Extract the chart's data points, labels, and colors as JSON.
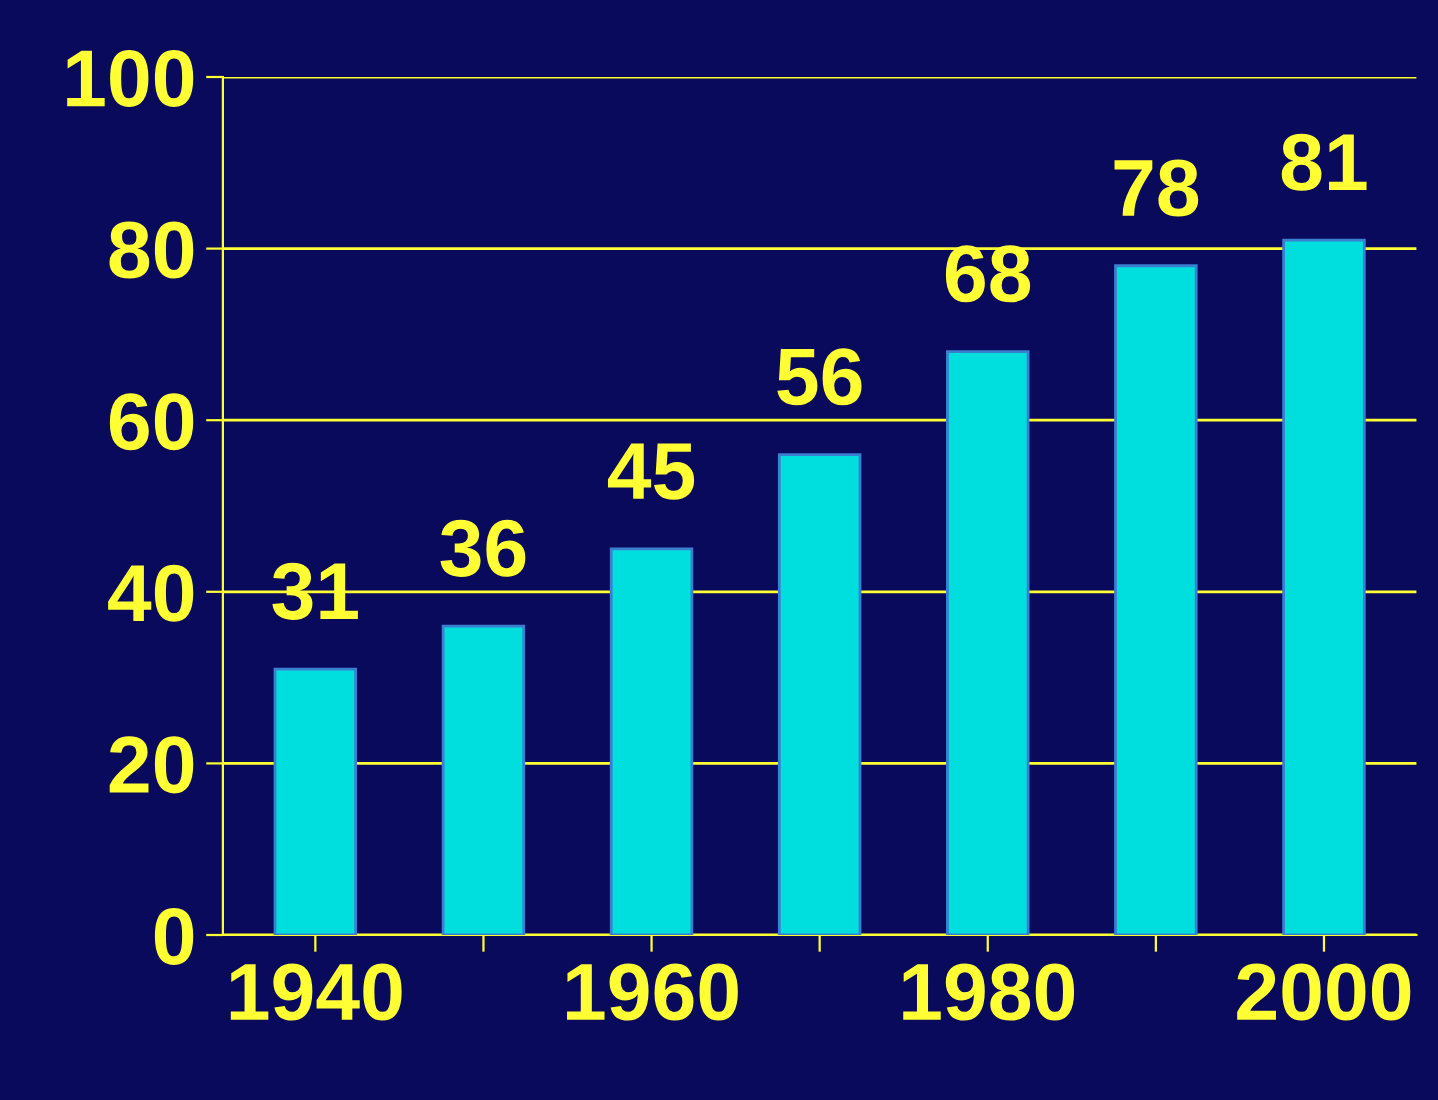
{
  "chart_data": {
    "type": "bar",
    "categories": [
      "1940",
      null,
      "1960",
      null,
      "1980",
      null,
      "2000"
    ],
    "values": [
      31,
      36,
      45,
      56,
      68,
      78,
      81
    ],
    "color": "#00dede",
    "ylim": [
      0,
      100
    ],
    "yticks": [
      0,
      20,
      40,
      60,
      80,
      100
    ],
    "grid": "y",
    "data_labels": true
  }
}
